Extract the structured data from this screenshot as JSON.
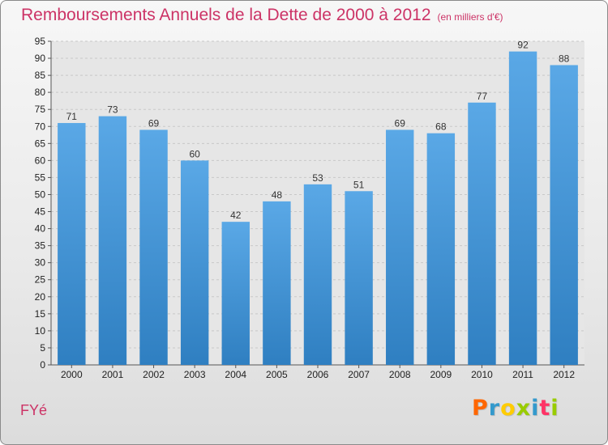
{
  "header": {
    "title": "Remboursements Annuels de la Dette de 2000 à 2012",
    "subtitle": "(en milliers d'€)"
  },
  "footer": {
    "place": "FYé",
    "logo_letters": [
      "P",
      "r",
      "o",
      "x",
      "i",
      "t",
      "i"
    ]
  },
  "colors": {
    "bar": "#5aa8e6",
    "bar_dark": "#2f7fc1",
    "title": "#cc3366",
    "logo": [
      "#ff6600",
      "#3399cc",
      "#ffcc00",
      "#99cc00",
      "#3399cc",
      "#ff3366",
      "#99cc00"
    ]
  },
  "chart_data": {
    "type": "bar",
    "categories": [
      "2000",
      "2001",
      "2002",
      "2003",
      "2004",
      "2005",
      "2006",
      "2007",
      "2008",
      "2009",
      "2010",
      "2011",
      "2012"
    ],
    "values": [
      71,
      73,
      69,
      60,
      42,
      48,
      53,
      51,
      69,
      68,
      77,
      92,
      88
    ],
    "ylim": [
      0,
      95
    ],
    "yticks": [
      0,
      5,
      10,
      15,
      20,
      25,
      30,
      35,
      40,
      45,
      50,
      55,
      60,
      65,
      70,
      75,
      80,
      85,
      90,
      95
    ],
    "grid": true,
    "data_labels": true
  }
}
